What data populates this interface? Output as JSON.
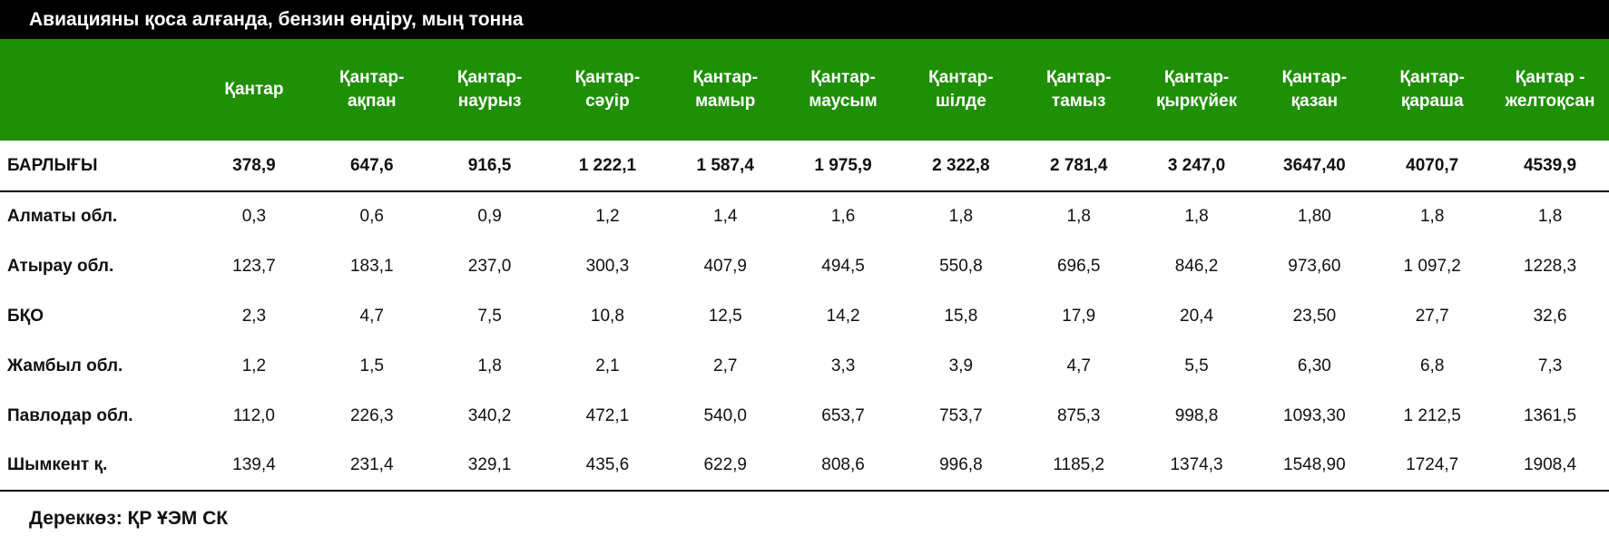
{
  "title": "Авиацияны қоса алғанда, бензин өндіру, мың тонна",
  "columns": [
    [
      "Қантар",
      ""
    ],
    [
      "Қантар-",
      "ақпан"
    ],
    [
      "Қантар-",
      "наурыз"
    ],
    [
      "Қантар-",
      "сәуір"
    ],
    [
      "Қантар-",
      "мамыр"
    ],
    [
      "Қантар-",
      "маусым"
    ],
    [
      "Қантар-",
      "шілде"
    ],
    [
      "Қантар-",
      "тамыз"
    ],
    [
      "Қантар-",
      "қыркүйек"
    ],
    [
      "Қантар-",
      "қазан"
    ],
    [
      "Қантар-",
      "қараша"
    ],
    [
      "Қантар -",
      "желтоқсан"
    ]
  ],
  "rows": [
    {
      "label": "БАРЛЫҒЫ",
      "values": [
        "378,9",
        "647,6",
        "916,5",
        "1 222,1",
        "1 587,4",
        "1 975,9",
        "2 322,8",
        "2 781,4",
        "3 247,0",
        "3647,40",
        "4070,7",
        "4539,9"
      ]
    },
    {
      "label": "Алматы обл.",
      "values": [
        "0,3",
        "0,6",
        "0,9",
        "1,2",
        "1,4",
        "1,6",
        "1,8",
        "1,8",
        "1,8",
        "1,80",
        "1,8",
        "1,8"
      ]
    },
    {
      "label": "Атырау обл.",
      "values": [
        "123,7",
        "183,1",
        "237,0",
        "300,3",
        "407,9",
        "494,5",
        "550,8",
        "696,5",
        "846,2",
        "973,60",
        "1 097,2",
        "1228,3"
      ]
    },
    {
      "label": "БҚО",
      "values": [
        "2,3",
        "4,7",
        "7,5",
        "10,8",
        "12,5",
        "14,2",
        "15,8",
        "17,9",
        "20,4",
        "23,50",
        "27,7",
        "32,6"
      ]
    },
    {
      "label": "Жамбыл обл.",
      "values": [
        "1,2",
        "1,5",
        "1,8",
        "2,1",
        "2,7",
        "3,3",
        "3,9",
        "4,7",
        "5,5",
        "6,30",
        "6,8",
        "7,3"
      ]
    },
    {
      "label": "Павлодар обл.",
      "values": [
        "112,0",
        "226,3",
        "340,2",
        "472,1",
        "540,0",
        "653,7",
        "753,7",
        "875,3",
        "998,8",
        "1093,30",
        "1 212,5",
        "1361,5"
      ]
    },
    {
      "label": "Шымкент қ.",
      "values": [
        "139,4",
        "231,4",
        "329,1",
        "435,6",
        "622,9",
        "808,6",
        "996,8",
        "1185,2",
        "1374,3",
        "1548,90",
        "1724,7",
        "1908,4"
      ]
    }
  ],
  "source": "Дереккөз: ҚР ҰЭМ СК",
  "colors": {
    "header_bg": "#1f8f06",
    "title_bg": "#000000"
  }
}
